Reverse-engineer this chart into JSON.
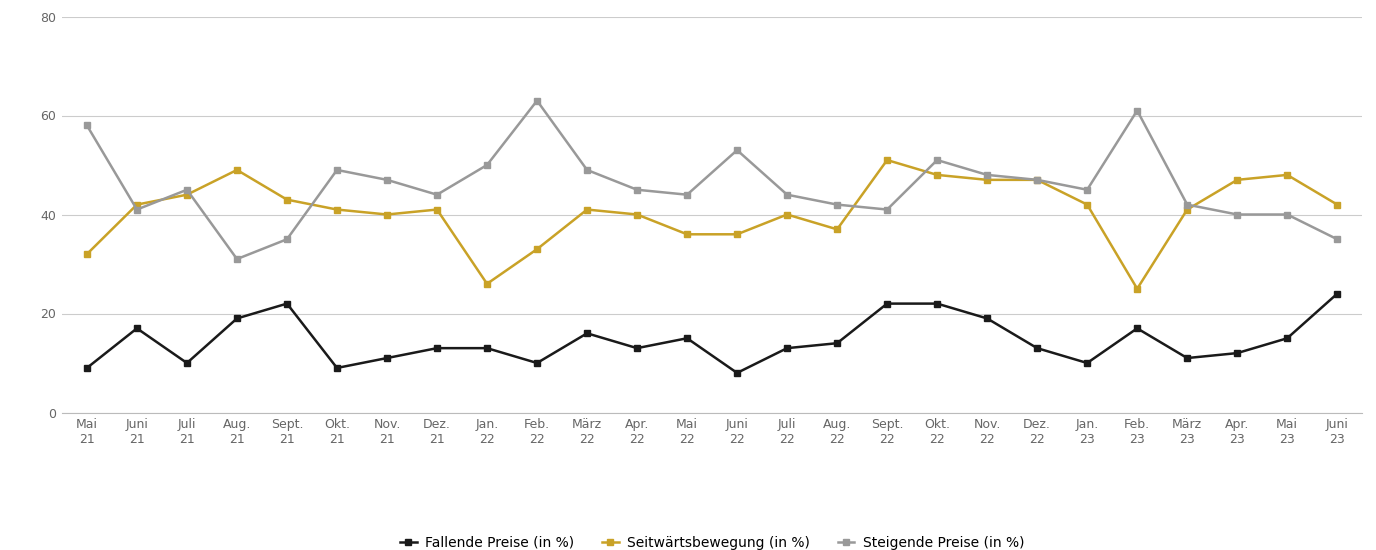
{
  "x_labels_line1": [
    "Mai",
    "Juni",
    "Juli",
    "Aug.",
    "Sept.",
    "Okt.",
    "Nov.",
    "Dez.",
    "Jan.",
    "Feb.",
    "März",
    "Apr.",
    "Mai",
    "Juni",
    "Juli",
    "Aug.",
    "Sept.",
    "Okt.",
    "Nov.",
    "Dez.",
    "Jan.",
    "Feb.",
    "März",
    "Apr.",
    "Mai",
    "Juni"
  ],
  "x_labels_line2": [
    "21",
    "21",
    "21",
    "21",
    "21",
    "21",
    "21",
    "21",
    "22",
    "22",
    "22",
    "22",
    "22",
    "22",
    "22",
    "22",
    "22",
    "22",
    "22",
    "22",
    "23",
    "23",
    "23",
    "23",
    "23",
    "23"
  ],
  "fallende": [
    9,
    17,
    10,
    19,
    22,
    9,
    11,
    13,
    13,
    10,
    16,
    13,
    15,
    8,
    13,
    14,
    22,
    22,
    19,
    13,
    10,
    17,
    11,
    12,
    15,
    24
  ],
  "seitwaerts": [
    32,
    42,
    44,
    49,
    43,
    41,
    40,
    41,
    26,
    33,
    41,
    40,
    36,
    36,
    40,
    37,
    51,
    48,
    47,
    47,
    42,
    25,
    41,
    47,
    48,
    42
  ],
  "steigende": [
    58,
    41,
    45,
    31,
    35,
    49,
    47,
    44,
    50,
    63,
    49,
    45,
    44,
    53,
    44,
    42,
    41,
    51,
    48,
    47,
    45,
    61,
    42,
    40,
    40,
    35
  ],
  "fallende_color": "#1a1a1a",
  "seitwaerts_color": "#c9a227",
  "steigende_color": "#999999",
  "marker": "s",
  "markersize": 4,
  "linewidth": 1.8,
  "ylim": [
    0,
    80
  ],
  "yticks": [
    0,
    20,
    40,
    60,
    80
  ],
  "background_color": "#ffffff",
  "grid_color": "#cccccc",
  "legend_labels": [
    "Fallende Preise (in %)",
    "Seitwärtsbewegung (in %)",
    "Steigende Preise (in %)"
  ]
}
